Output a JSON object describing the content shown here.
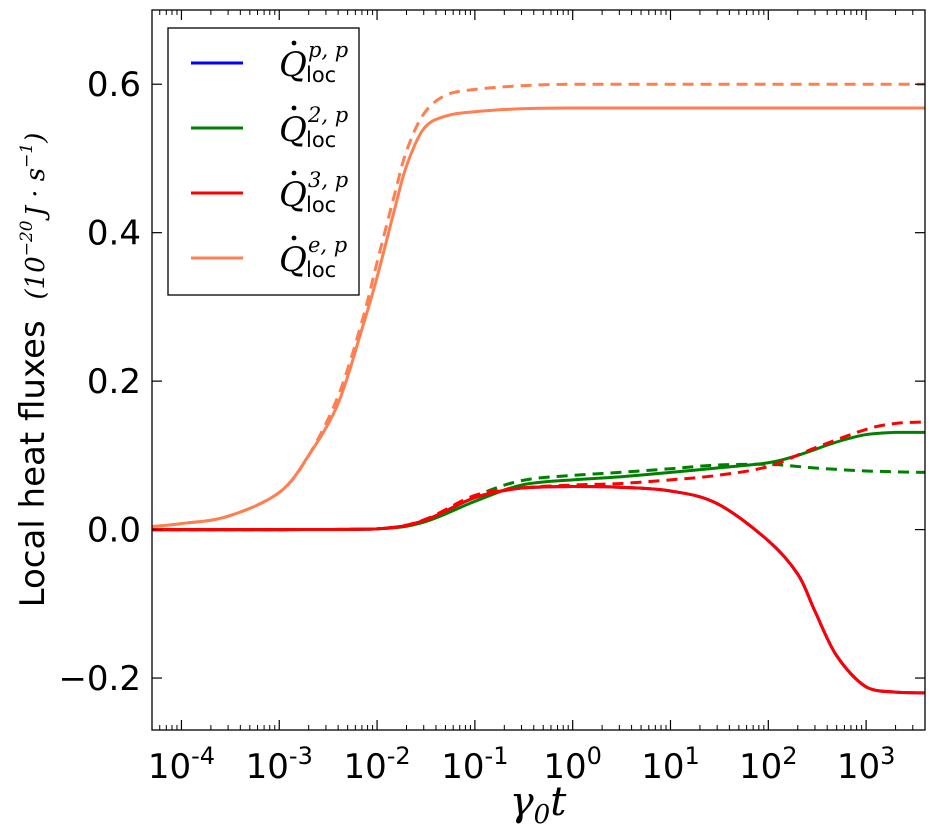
{
  "chart_data": {
    "type": "line",
    "xscale": "log",
    "xlabel": "γ₀t",
    "xlabel_main": "γ",
    "xlabel_sub": "0",
    "xlabel_tail": "t",
    "ylabel": "Local heat fluxes (10⁻²⁰ J · s⁻¹)",
    "ylabel_text": "Local heat fluxes",
    "ylabel_unit_pre": "(10",
    "ylabel_unit_exp": "−20",
    "ylabel_unit_mid": "J · s",
    "ylabel_unit_exp2": "−1",
    "ylabel_unit_post": ")",
    "xlim": [
      5e-05,
      4000
    ],
    "ylim": [
      -0.27,
      0.7
    ],
    "x_ticks": [
      {
        "value": 0.0001,
        "base": "10",
        "exp": "-4"
      },
      {
        "value": 0.001,
        "base": "10",
        "exp": "-3"
      },
      {
        "value": 0.01,
        "base": "10",
        "exp": "-2"
      },
      {
        "value": 0.1,
        "base": "10",
        "exp": "-1"
      },
      {
        "value": 1,
        "base": "10",
        "exp": "0"
      },
      {
        "value": 10,
        "base": "10",
        "exp": "1"
      },
      {
        "value": 100,
        "base": "10",
        "exp": "2"
      },
      {
        "value": 1000,
        "base": "10",
        "exp": "3"
      }
    ],
    "y_ticks": [
      {
        "value": 0.6,
        "label": "0.6"
      },
      {
        "value": 0.4,
        "label": "0.4"
      },
      {
        "value": 0.2,
        "label": "0.2"
      },
      {
        "value": 0.0,
        "label": "0.0"
      },
      {
        "value": -0.2,
        "label": "−0.2"
      }
    ],
    "legend_position": "top-left",
    "legend": [
      {
        "label": "Q̇_loc^{p,p}",
        "main": "Q",
        "sub": "loc",
        "sup": "p, p",
        "color": "#0000ff"
      },
      {
        "label": "Q̇_loc^{2,p}",
        "main": "Q",
        "sub": "loc",
        "sup": "2, p",
        "color": "#008000"
      },
      {
        "label": "Q̇_loc^{3,p}",
        "main": "Q",
        "sub": "loc",
        "sup": "3, p",
        "color": "#ff0000"
      },
      {
        "label": "Q̇_loc^{e,p}",
        "main": "Q",
        "sub": "loc",
        "sup": "e, p",
        "color": "#ff7f50"
      }
    ],
    "series": [
      {
        "name": "Q_loc^{p,p} solid",
        "color": "#0000ff",
        "dash": false,
        "x": [
          5e-05,
          0.001,
          0.01,
          0.03,
          0.1,
          0.3,
          1,
          3,
          10,
          30,
          100,
          200,
          300,
          500,
          1000,
          2000,
          4000
        ],
        "y": [
          0,
          0,
          0.001,
          0.012,
          0.043,
          0.056,
          0.058,
          0.057,
          0.052,
          0.035,
          -0.015,
          -0.06,
          -0.11,
          -0.17,
          -0.212,
          -0.219,
          -0.22
        ]
      },
      {
        "name": "Q_loc^{2,p} solid",
        "color": "#008000",
        "dash": false,
        "x": [
          5e-05,
          0.001,
          0.01,
          0.03,
          0.1,
          0.3,
          1,
          3,
          10,
          30,
          100,
          200,
          500,
          1000,
          2000,
          4000
        ],
        "y": [
          0,
          0,
          0.001,
          0.01,
          0.038,
          0.06,
          0.067,
          0.071,
          0.077,
          0.083,
          0.09,
          0.1,
          0.118,
          0.128,
          0.131,
          0.131
        ]
      },
      {
        "name": "Q_loc^{2,p} dashed",
        "color": "#008000",
        "dash": true,
        "x": [
          5e-05,
          0.001,
          0.01,
          0.03,
          0.1,
          0.3,
          1,
          3,
          10,
          30,
          100,
          300,
          1000,
          4000
        ],
        "y": [
          0,
          0,
          0.001,
          0.012,
          0.045,
          0.066,
          0.073,
          0.077,
          0.082,
          0.087,
          0.088,
          0.083,
          0.079,
          0.077
        ]
      },
      {
        "name": "Q_loc^{3,p} dashed",
        "color": "#ff0000",
        "dash": true,
        "x": [
          5e-05,
          0.001,
          0.01,
          0.03,
          0.1,
          0.3,
          1,
          3,
          10,
          30,
          100,
          300,
          1000,
          2000,
          4000
        ],
        "y": [
          0,
          0,
          0.001,
          0.013,
          0.046,
          0.056,
          0.06,
          0.062,
          0.067,
          0.073,
          0.085,
          0.11,
          0.135,
          0.143,
          0.145
        ]
      },
      {
        "name": "Q_loc^{3,p} solid",
        "color": "#ff0000",
        "dash": false,
        "x": [
          5e-05,
          0.001,
          0.01,
          0.03,
          0.1,
          0.3,
          1,
          3,
          10,
          30,
          100,
          200,
          300,
          500,
          1000,
          2000,
          4000
        ],
        "y": [
          0,
          0,
          0.001,
          0.012,
          0.043,
          0.056,
          0.058,
          0.057,
          0.052,
          0.035,
          -0.015,
          -0.06,
          -0.11,
          -0.17,
          -0.212,
          -0.219,
          -0.22
        ]
      },
      {
        "name": "Q_loc^{e,p} dashed",
        "color": "#ff7f50",
        "dash": true,
        "x": [
          5e-05,
          0.0001,
          0.0003,
          0.001,
          0.002,
          0.004,
          0.007,
          0.01,
          0.015,
          0.02,
          0.03,
          0.05,
          0.1,
          0.3,
          1,
          10,
          100,
          1000,
          4000
        ],
        "y": [
          0.004,
          0.008,
          0.018,
          0.05,
          0.1,
          0.18,
          0.28,
          0.36,
          0.45,
          0.51,
          0.56,
          0.585,
          0.593,
          0.598,
          0.6,
          0.6,
          0.6,
          0.6,
          0.6
        ]
      },
      {
        "name": "Q_loc^{e,p} solid",
        "color": "#ff7f50",
        "dash": false,
        "x": [
          5e-05,
          0.0001,
          0.0003,
          0.001,
          0.002,
          0.004,
          0.007,
          0.01,
          0.015,
          0.02,
          0.03,
          0.05,
          0.1,
          0.3,
          1,
          10,
          100,
          1000,
          4000
        ],
        "y": [
          0.004,
          0.008,
          0.018,
          0.05,
          0.1,
          0.17,
          0.27,
          0.34,
          0.43,
          0.49,
          0.54,
          0.557,
          0.563,
          0.567,
          0.568,
          0.568,
          0.568,
          0.568,
          0.568
        ]
      }
    ]
  }
}
